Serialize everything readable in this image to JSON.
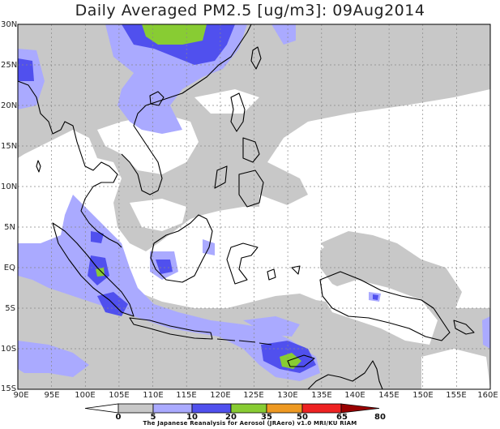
{
  "title": "Daily Averaged PM2.5 [ug/m3]: 09Aug2014",
  "lat_labels": [
    "30N",
    "25N",
    "20N",
    "15N",
    "10N",
    "5N",
    "EQ",
    "5S",
    "10S",
    "15S"
  ],
  "lon_labels": [
    "90E",
    "95E",
    "100E",
    "105E",
    "110E",
    "115E",
    "120E",
    "125E",
    "130E",
    "135E",
    "140E",
    "145E",
    "150E",
    "155E",
    "160E"
  ],
  "colorbar": {
    "levels": [
      "0",
      "5",
      "10",
      "20",
      "35",
      "50",
      "65",
      "80"
    ],
    "colors": [
      "#ffffff",
      "#c8c8c8",
      "#aaaaff",
      "#5050ee",
      "#88cc33",
      "#ee9922",
      "#ee2222",
      "#990000"
    ]
  },
  "credit": "The Japanese Reanalysis for Aerosol (JRAero) v1.0 MRI/KU RIAM"
}
